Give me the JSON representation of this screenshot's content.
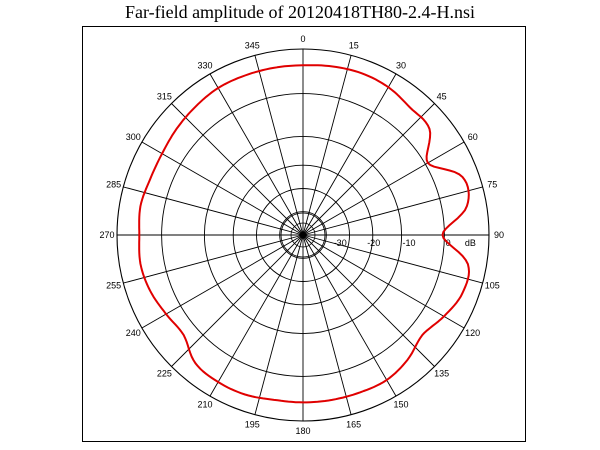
{
  "chart_data": {
    "type": "polar",
    "title": "Far-field amplitude of 20120418TH80-2.4-H.nsi",
    "angle_labels": [
      "0",
      "15",
      "30",
      "45",
      "60",
      "75",
      "90",
      "105",
      "120",
      "135",
      "150",
      "165",
      "180",
      "195",
      "210",
      "225",
      "240",
      "255",
      "270",
      "285",
      "300",
      "315",
      "330",
      "345"
    ],
    "radial_labels": [
      "-30",
      "-20",
      "-10",
      "0"
    ],
    "radial_unit": "dB",
    "r_range": [
      -40,
      0
    ],
    "series": [
      {
        "color": "#e00000",
        "theta": [
          0,
          10,
          20,
          30,
          40,
          50,
          60,
          70,
          80,
          90,
          100,
          110,
          120,
          130,
          140,
          150,
          160,
          170,
          180,
          190,
          200,
          210,
          220,
          230,
          240,
          250,
          260,
          270,
          280,
          290,
          300,
          310,
          320,
          330,
          340,
          350
        ],
        "values": [
          -3.5,
          -3.2,
          -3.0,
          -3.3,
          -4.2,
          -4.5,
          -9.0,
          -3.5,
          -4.2,
          -10.0,
          -4.0,
          -3.5,
          -5.0,
          -6.5,
          -5.0,
          -4.0,
          -4.0,
          -4.0,
          -4.0,
          -4.0,
          -3.5,
          -3.5,
          -4.0,
          -6.5,
          -6.0,
          -5.0,
          -4.5,
          -4.8,
          -4.5,
          -5.0,
          -5.0,
          -4.5,
          -4.0,
          -3.5,
          -3.5,
          -3.5
        ]
      }
    ],
    "grid": true
  }
}
